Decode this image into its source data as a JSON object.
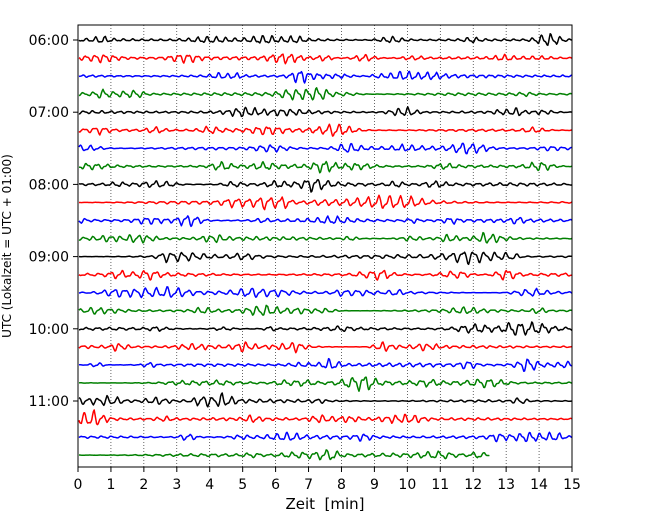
{
  "chart_data": {
    "type": "line",
    "title": "",
    "xlabel": "Zeit  [min]",
    "ylabel": "UTC (Lokalzeit = UTC + 01:00)",
    "xlim": [
      0,
      15
    ],
    "x_ticks": [
      "0",
      "1",
      "2",
      "3",
      "4",
      "5",
      "6",
      "7",
      "8",
      "9",
      "10",
      "11",
      "12",
      "13",
      "14",
      "15"
    ],
    "y_tick_labels": [
      "06:00",
      "07:00",
      "08:00",
      "09:00",
      "10:00",
      "11:00"
    ],
    "grid": "vertical-dotted",
    "trace_interval_min": 15,
    "start_time": "06:00",
    "trace_colors": [
      "#000000",
      "#ff0000",
      "#0000ff",
      "#008000"
    ],
    "trace_count": 24,
    "last_trace_end_min": 12.5,
    "series": [
      {
        "start": "06:00",
        "color": "#000000"
      },
      {
        "start": "06:15",
        "color": "#ff0000"
      },
      {
        "start": "06:30",
        "color": "#0000ff"
      },
      {
        "start": "06:45",
        "color": "#008000"
      },
      {
        "start": "07:00",
        "color": "#000000"
      },
      {
        "start": "07:15",
        "color": "#ff0000"
      },
      {
        "start": "07:30",
        "color": "#0000ff"
      },
      {
        "start": "07:45",
        "color": "#008000"
      },
      {
        "start": "08:00",
        "color": "#000000"
      },
      {
        "start": "08:15",
        "color": "#ff0000"
      },
      {
        "start": "08:30",
        "color": "#0000ff"
      },
      {
        "start": "08:45",
        "color": "#008000"
      },
      {
        "start": "09:00",
        "color": "#000000"
      },
      {
        "start": "09:15",
        "color": "#ff0000"
      },
      {
        "start": "09:30",
        "color": "#0000ff"
      },
      {
        "start": "09:45",
        "color": "#008000"
      },
      {
        "start": "10:00",
        "color": "#000000"
      },
      {
        "start": "10:15",
        "color": "#ff0000"
      },
      {
        "start": "10:30",
        "color": "#0000ff"
      },
      {
        "start": "10:45",
        "color": "#008000"
      },
      {
        "start": "11:00",
        "color": "#000000"
      },
      {
        "start": "11:15",
        "color": "#ff0000"
      },
      {
        "start": "11:30",
        "color": "#0000ff"
      },
      {
        "start": "11:45",
        "color": "#008000"
      }
    ]
  }
}
